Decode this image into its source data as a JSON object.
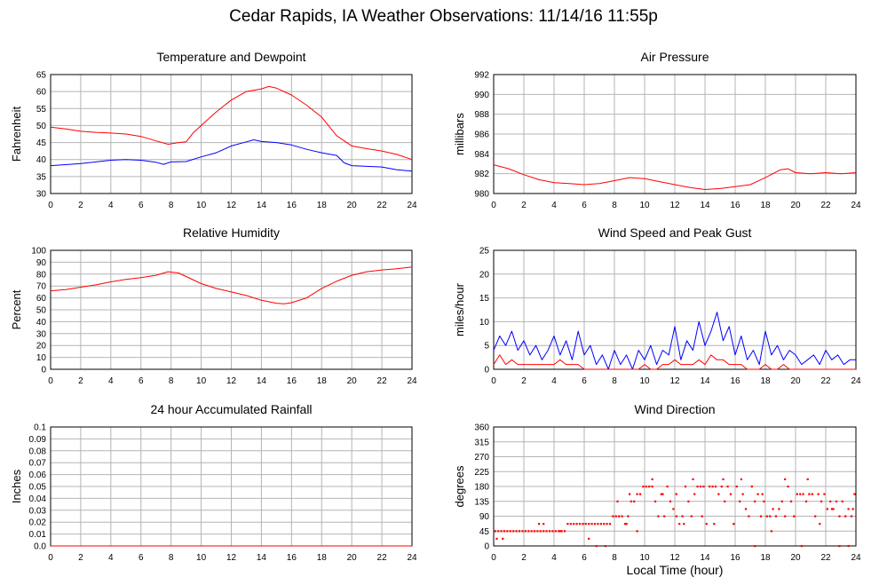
{
  "title": "Cedar Rapids, IA Weather Observations: 11/14/16 11:55p",
  "xlabel": "Local Time (hour)",
  "colors": {
    "red": "#ff0000",
    "blue": "#0000ff",
    "grid": "#b4b4b4"
  },
  "chart_data": [
    {
      "id": "temp",
      "type": "line",
      "title": "Temperature and Dewpoint",
      "ylabel": "Fahrenheit",
      "xlim": [
        0,
        24
      ],
      "ylim": [
        30,
        65
      ],
      "yticks": [
        "30",
        "35",
        "40",
        "45",
        "50",
        "55",
        "60",
        "65"
      ],
      "xticks": [
        "0",
        "2",
        "4",
        "6",
        "8",
        "10",
        "12",
        "14",
        "16",
        "18",
        "20",
        "22",
        "24"
      ],
      "series": [
        {
          "color": "#ff0000",
          "x": [
            0,
            1,
            2,
            3,
            4,
            5,
            6,
            7,
            7.8,
            8.5,
            9,
            9.5,
            10,
            11,
            12,
            13,
            14,
            14.5,
            15,
            16,
            17,
            18,
            19,
            20,
            21,
            22,
            23,
            24
          ],
          "y": [
            49.5,
            49,
            48.3,
            48,
            47.8,
            47.5,
            46.8,
            45.5,
            44.5,
            45,
            45.2,
            48,
            50,
            54,
            57.5,
            60,
            60.8,
            61.5,
            61,
            59,
            56,
            52.5,
            47,
            44,
            43.2,
            42.5,
            41.5,
            40
          ]
        },
        {
          "color": "#0000ff",
          "x": [
            0,
            1,
            2,
            3,
            4,
            5,
            6,
            7,
            7.5,
            8,
            9,
            10,
            11,
            12,
            13,
            13.5,
            14,
            15,
            16,
            17,
            18,
            19,
            19.5,
            20,
            21,
            22,
            23,
            24
          ],
          "y": [
            38.2,
            38.5,
            38.8,
            39.3,
            39.8,
            40,
            39.8,
            39.2,
            38.6,
            39.3,
            39.4,
            40.8,
            42,
            44,
            45.2,
            45.8,
            45.3,
            45,
            44.3,
            43,
            42,
            41.2,
            39,
            38.2,
            38,
            37.8,
            37,
            36.6
          ]
        }
      ]
    },
    {
      "id": "pres",
      "type": "line",
      "title": "Air Pressure",
      "ylabel": "millibars",
      "xlim": [
        0,
        24
      ],
      "ylim": [
        980,
        992
      ],
      "yticks": [
        "980",
        "982",
        "984",
        "986",
        "988",
        "990",
        "992"
      ],
      "xticks": [
        "0",
        "2",
        "4",
        "6",
        "8",
        "10",
        "12",
        "14",
        "16",
        "18",
        "20",
        "22",
        "24"
      ],
      "series": [
        {
          "color": "#ff0000",
          "x": [
            0,
            1,
            2,
            3,
            4,
            5,
            6,
            7,
            8,
            9,
            10,
            11,
            12,
            13,
            14,
            15,
            16,
            17,
            18,
            19,
            19.5,
            20,
            21,
            22,
            23,
            24
          ],
          "y": [
            982.9,
            982.5,
            981.9,
            981.4,
            981.1,
            981.0,
            980.9,
            981.0,
            981.3,
            981.6,
            981.5,
            981.2,
            980.9,
            980.6,
            980.4,
            980.5,
            980.7,
            980.9,
            981.6,
            982.4,
            982.5,
            982.1,
            982.0,
            982.1,
            982.0,
            982.1
          ]
        }
      ]
    },
    {
      "id": "rh",
      "type": "line",
      "title": "Relative Humidity",
      "ylabel": "Percent",
      "xlim": [
        0,
        24
      ],
      "ylim": [
        0,
        100
      ],
      "yticks": [
        "0",
        "10",
        "20",
        "30",
        "40",
        "50",
        "60",
        "70",
        "80",
        "90",
        "100"
      ],
      "xticks": [
        "0",
        "2",
        "4",
        "6",
        "8",
        "10",
        "12",
        "14",
        "16",
        "18",
        "20",
        "22",
        "24"
      ],
      "series": [
        {
          "color": "#ff0000",
          "x": [
            0,
            1,
            2,
            3,
            4,
            5,
            6,
            7,
            7.8,
            8.5,
            9,
            10,
            11,
            12,
            13,
            14,
            15,
            15.5,
            16,
            17,
            18,
            19,
            20,
            21,
            22,
            23,
            24
          ],
          "y": [
            66,
            67,
            69,
            71,
            73.5,
            75.5,
            77,
            79,
            82,
            81,
            78,
            72,
            68,
            65,
            62,
            58,
            55.5,
            55,
            56,
            60,
            68,
            74,
            79,
            82,
            83.5,
            84.5,
            86
          ]
        }
      ]
    },
    {
      "id": "wind",
      "type": "line",
      "title": "Wind Speed and Peak Gust",
      "ylabel": "miles/hour",
      "xlim": [
        0,
        24
      ],
      "ylim": [
        0,
        25
      ],
      "yticks": [
        "0",
        "5",
        "10",
        "15",
        "20",
        "25"
      ],
      "xticks": [
        "0",
        "2",
        "4",
        "6",
        "8",
        "10",
        "12",
        "14",
        "16",
        "18",
        "20",
        "22",
        "24"
      ],
      "series": [
        {
          "color": "#0000ff",
          "x": [
            0,
            0.4,
            0.8,
            1.2,
            1.6,
            2,
            2.4,
            2.8,
            3.2,
            3.6,
            4,
            4.4,
            4.8,
            5.2,
            5.6,
            6,
            6.4,
            6.8,
            7.2,
            7.6,
            8,
            8.4,
            8.8,
            9.2,
            9.6,
            10,
            10.4,
            10.8,
            11.2,
            11.6,
            12,
            12.4,
            12.8,
            13.2,
            13.6,
            14,
            14.4,
            14.8,
            15.2,
            15.6,
            16,
            16.4,
            16.8,
            17.2,
            17.6,
            18,
            18.4,
            18.8,
            19.2,
            19.6,
            20,
            20.4,
            20.8,
            21.2,
            21.6,
            22,
            22.4,
            22.8,
            23.2,
            23.6,
            24
          ],
          "y": [
            4,
            7,
            5,
            8,
            4,
            6,
            3,
            5,
            2,
            4,
            7,
            3,
            6,
            2,
            8,
            3,
            5,
            1,
            3,
            0,
            4,
            1,
            3,
            0,
            4,
            2,
            5,
            1,
            4,
            3,
            9,
            2,
            6,
            4,
            10,
            5,
            8,
            12,
            6,
            9,
            3,
            7,
            2,
            4,
            1,
            8,
            3,
            5,
            2,
            4,
            3,
            1,
            2,
            3,
            1,
            4,
            2,
            3,
            1,
            2,
            2
          ]
        },
        {
          "color": "#ff0000",
          "x": [
            0,
            0.4,
            0.8,
            1.2,
            1.6,
            2,
            2.4,
            2.8,
            3.2,
            3.6,
            4,
            4.4,
            4.8,
            5.2,
            5.6,
            6,
            6.4,
            6.8,
            7.2,
            7.6,
            8,
            8.4,
            8.8,
            9.2,
            9.6,
            10,
            10.4,
            10.8,
            11.2,
            11.6,
            12,
            12.4,
            12.8,
            13.2,
            13.6,
            14,
            14.4,
            14.8,
            15.2,
            15.6,
            16,
            16.4,
            16.8,
            17.2,
            17.6,
            18,
            18.4,
            18.8,
            19.2,
            19.6,
            20,
            20.4,
            20.8,
            21.2,
            21.6,
            22,
            22.4,
            22.8,
            23.2,
            23.6,
            24
          ],
          "y": [
            1,
            3,
            1,
            2,
            1,
            1,
            1,
            1,
            1,
            1,
            1,
            2,
            1,
            1,
            1,
            0,
            0,
            0,
            0,
            0,
            0,
            0,
            0,
            0,
            0,
            1,
            0,
            0,
            1,
            1,
            2,
            1,
            1,
            1,
            2,
            1,
            3,
            2,
            2,
            1,
            1,
            1,
            0,
            0,
            0,
            1,
            0,
            0,
            1,
            0,
            0,
            0,
            0,
            0,
            0,
            0,
            0,
            0,
            0,
            0,
            0
          ]
        }
      ]
    },
    {
      "id": "rain",
      "type": "line",
      "title": "24 hour Accumulated Rainfall",
      "ylabel": "Inches",
      "xlim": [
        0,
        24
      ],
      "ylim": [
        0,
        0.1
      ],
      "yticks": [
        "0.0",
        "0.01",
        "0.02",
        "0.03",
        "0.04",
        "0.05",
        "0.06",
        "0.07",
        "0.08",
        "0.09",
        "0.1"
      ],
      "xticks": [
        "0",
        "2",
        "4",
        "6",
        "8",
        "10",
        "12",
        "14",
        "16",
        "18",
        "20",
        "22",
        "24"
      ],
      "series": [
        {
          "color": "#ff0000",
          "x": [
            0,
            24
          ],
          "y": [
            0,
            0
          ]
        }
      ]
    },
    {
      "id": "wdir",
      "type": "scatter",
      "title": "Wind Direction",
      "ylabel": "degrees",
      "xlim": [
        0,
        24
      ],
      "ylim": [
        0,
        360
      ],
      "yticks": [
        "0",
        "45",
        "90",
        "135",
        "180",
        "225",
        "270",
        "315",
        "360"
      ],
      "xticks": [
        "0",
        "2",
        "4",
        "6",
        "8",
        "10",
        "12",
        "14",
        "16",
        "18",
        "20",
        "22",
        "24"
      ],
      "series": [
        {
          "color": "#ff0000",
          "x": [
            0.1,
            0.3,
            0.5,
            0.7,
            0.9,
            1.1,
            1.3,
            1.5,
            1.7,
            1.9,
            2.1,
            2.3,
            2.5,
            2.7,
            2.9,
            3.1,
            3.3,
            3.5,
            3.7,
            3.9,
            4.1,
            4.3,
            4.5,
            4.7,
            4.9,
            5.1,
            5.3,
            5.5,
            5.7,
            5.9,
            6.1,
            6.3,
            6.5,
            6.7,
            6.9,
            7.1,
            7.3,
            7.5,
            7.7,
            7.9,
            8.1,
            8.3,
            8.5,
            8.7,
            8.9,
            9.1,
            9.3,
            9.5,
            9.7,
            9.9,
            10.1,
            10.3,
            10.5,
            10.7,
            10.9,
            11.1,
            11.3,
            11.5,
            11.7,
            11.9,
            12.1,
            12.3,
            12.5,
            12.7,
            12.9,
            13.1,
            13.3,
            13.5,
            13.7,
            13.9,
            14.1,
            14.3,
            14.5,
            14.7,
            14.9,
            15.1,
            15.3,
            15.5,
            15.7,
            15.9,
            16.1,
            16.3,
            16.5,
            16.7,
            16.9,
            17.1,
            17.3,
            17.5,
            17.7,
            17.9,
            18.1,
            18.3,
            18.5,
            18.7,
            18.9,
            19.1,
            19.3,
            19.5,
            19.7,
            19.9,
            20.1,
            20.3,
            20.5,
            20.7,
            20.9,
            21.1,
            21.3,
            21.5,
            21.7,
            21.9,
            22.1,
            22.3,
            22.5,
            22.7,
            22.9,
            23.1,
            23.3,
            23.5,
            23.7,
            23.9,
            0.2,
            0.6,
            3.0,
            3.3,
            4.4,
            6.3,
            6.8,
            7.4,
            8.2,
            8.8,
            9.0,
            9.5,
            10.5,
            11.2,
            12.1,
            12.6,
            13.2,
            13.8,
            14.6,
            15.2,
            15.9,
            16.4,
            17.3,
            17.8,
            18.4,
            19.3,
            19.9,
            20.4,
            20.8,
            21.6,
            22.4,
            22.9,
            23.5,
            23.8
          ],
          "y": [
            45,
            45,
            45,
            45,
            45,
            45,
            45,
            45,
            45,
            45,
            45,
            45,
            45,
            45,
            45,
            45,
            45,
            45,
            45,
            45,
            45,
            45,
            45,
            45,
            67,
            67,
            67,
            67,
            67,
            67,
            67,
            67,
            67,
            67,
            67,
            67,
            67,
            67,
            67,
            90,
            90,
            90,
            90,
            67,
            90,
            135,
            135,
            157,
            157,
            180,
            180,
            180,
            180,
            135,
            90,
            157,
            90,
            180,
            135,
            112,
            157,
            67,
            90,
            180,
            135,
            90,
            157,
            180,
            180,
            180,
            67,
            180,
            180,
            180,
            157,
            180,
            135,
            180,
            157,
            67,
            180,
            135,
            157,
            112,
            90,
            180,
            135,
            157,
            90,
            135,
            90,
            90,
            112,
            90,
            112,
            135,
            90,
            180,
            135,
            90,
            157,
            157,
            157,
            135,
            157,
            157,
            90,
            157,
            135,
            157,
            112,
            135,
            112,
            135,
            90,
            135,
            90,
            112,
            90,
            157,
            22,
            22,
            67,
            67,
            45,
            22,
            0,
            0,
            135,
            67,
            157,
            45,
            202,
            157,
            90,
            67,
            202,
            90,
            67,
            202,
            67,
            202,
            0,
            157,
            45,
            202,
            90,
            0,
            202,
            67,
            112,
            0,
            0,
            112
          ]
        }
      ]
    }
  ]
}
